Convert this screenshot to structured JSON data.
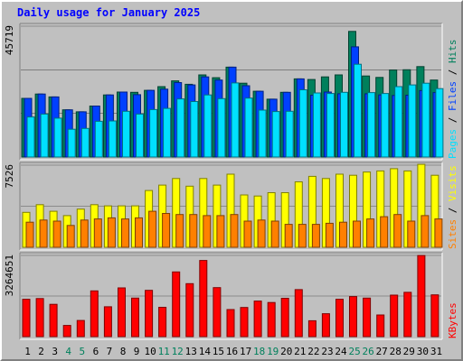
{
  "chart_title": "Daily usage for January 2025",
  "colors": {
    "hits": "#00805c",
    "files": "#0040ff",
    "pages": "#00e0ff",
    "visits": "#ffff00",
    "sites": "#ff8000",
    "kbytes": "#ff0000",
    "weekend": "#00805c",
    "weekday": "#000000"
  },
  "chart_data": [
    {
      "type": "bar",
      "categories": [
        "1",
        "2",
        "3",
        "4",
        "5",
        "6",
        "7",
        "8",
        "9",
        "10",
        "11",
        "12",
        "13",
        "14",
        "15",
        "16",
        "17",
        "18",
        "19",
        "20",
        "21",
        "22",
        "23",
        "24",
        "25",
        "26",
        "27",
        "28",
        "29",
        "30",
        "31"
      ],
      "weekend_days": [
        "4",
        "5",
        "11",
        "12",
        "18",
        "19",
        "25",
        "26"
      ],
      "ymax_label": "45719",
      "ylim": [
        0,
        45719
      ],
      "axis_labels": [
        "Pages",
        "Files",
        "Hits"
      ],
      "series": [
        {
          "name": "Hits",
          "values": [
            20500,
            22000,
            21000,
            16500,
            15800,
            17800,
            21700,
            22700,
            22600,
            23300,
            24600,
            26600,
            25400,
            28700,
            27700,
            31400,
            25800,
            23000,
            20200,
            22600,
            27300,
            27100,
            28000,
            28700,
            43900,
            28300,
            27800,
            30400,
            30500,
            31600,
            26900
          ]
        },
        {
          "name": "Files",
          "values": [
            20500,
            22000,
            21000,
            16500,
            15800,
            17800,
            21700,
            22700,
            21800,
            23300,
            23700,
            26000,
            25200,
            28000,
            26900,
            31400,
            24900,
            23000,
            20200,
            22600,
            27300,
            21600,
            22700,
            22100,
            38500,
            22100,
            21700,
            21500,
            21600,
            23200,
            22500
          ]
        },
        {
          "name": "Pages",
          "values": [
            14000,
            15000,
            13600,
            9700,
            10000,
            12500,
            12600,
            16000,
            15000,
            16600,
            17000,
            20300,
            19400,
            21700,
            20400,
            25900,
            20600,
            16400,
            15900,
            16000,
            23500,
            22400,
            22200,
            22600,
            32400,
            22500,
            22200,
            24600,
            25200,
            25800,
            23900
          ]
        }
      ]
    },
    {
      "type": "bar",
      "categories": [
        "1",
        "2",
        "3",
        "4",
        "5",
        "6",
        "7",
        "8",
        "9",
        "10",
        "11",
        "12",
        "13",
        "14",
        "15",
        "16",
        "17",
        "18",
        "19",
        "20",
        "21",
        "22",
        "23",
        "24",
        "25",
        "26",
        "27",
        "28",
        "29",
        "30",
        "31"
      ],
      "ymax_label": "7526",
      "ylim": [
        0,
        7526
      ],
      "axis_labels": [
        "Sites",
        "Visits"
      ],
      "series": [
        {
          "name": "Visits",
          "values": [
            3200,
            3900,
            3300,
            2900,
            3500,
            3900,
            3800,
            3800,
            3800,
            5200,
            5700,
            6300,
            5600,
            6300,
            5700,
            6700,
            4800,
            4700,
            5000,
            5000,
            6000,
            6500,
            6300,
            6700,
            6600,
            6900,
            7000,
            7200,
            7000,
            7600,
            6600
          ]
        },
        {
          "name": "Sites",
          "values": [
            2300,
            2500,
            2400,
            2000,
            2500,
            2600,
            2700,
            2600,
            2700,
            3300,
            3100,
            3000,
            3000,
            2900,
            2900,
            3000,
            2400,
            2500,
            2400,
            2100,
            2100,
            2100,
            2200,
            2300,
            2400,
            2600,
            2800,
            3000,
            2400,
            2900,
            2600
          ]
        }
      ]
    },
    {
      "type": "bar",
      "categories": [
        "1",
        "2",
        "3",
        "4",
        "5",
        "6",
        "7",
        "8",
        "9",
        "10",
        "11",
        "12",
        "13",
        "14",
        "15",
        "16",
        "17",
        "18",
        "19",
        "20",
        "21",
        "22",
        "23",
        "24",
        "25",
        "26",
        "27",
        "28",
        "29",
        "30",
        "31"
      ],
      "ymax_label": "3264651",
      "ylim": [
        0,
        3264651
      ],
      "axis_labels": [
        "KBytes"
      ],
      "series": [
        {
          "name": "KBytes",
          "values": [
            1500000,
            1530000,
            1300000,
            450000,
            650000,
            1840000,
            1200000,
            1960000,
            1550000,
            1860000,
            1180000,
            2600000,
            2130000,
            3060000,
            1970000,
            1090000,
            1170000,
            1430000,
            1370000,
            1540000,
            1890000,
            640000,
            920000,
            1500000,
            1610000,
            1550000,
            870000,
            1670000,
            1780000,
            3260000,
            1680000
          ]
        }
      ]
    }
  ]
}
